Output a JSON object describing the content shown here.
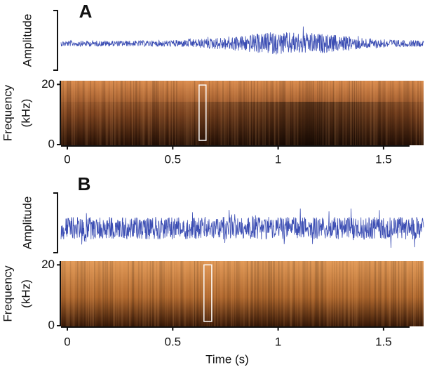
{
  "chart_data": [
    {
      "type": "spectrogram",
      "label": "A",
      "amplitude_label": "Amplitude",
      "frequency_label": [
        "Frequency",
        "(kHz)"
      ],
      "waveform_color": "#3b4db3",
      "xlim": [
        -0.03,
        1.69
      ],
      "xticks": [
        0,
        0.5,
        1,
        1.5
      ],
      "ylim": [
        0,
        21
      ],
      "yticks": [
        0,
        20
      ],
      "highlight": {
        "x": [
          0.625,
          0.658
        ],
        "y": [
          1.4,
          19.8
        ]
      }
    },
    {
      "type": "spectrogram",
      "label": "B",
      "amplitude_label": "Amplitude",
      "frequency_label": [
        "Frequency",
        "(kHz)"
      ],
      "waveform_color": "#3b4db3",
      "xlim": [
        -0.03,
        1.69
      ],
      "xticks": [
        0,
        0.5,
        1,
        1.5
      ],
      "ylim": [
        0,
        21
      ],
      "yticks": [
        0,
        20
      ],
      "highlight": {
        "x": [
          0.648,
          0.685
        ],
        "y": [
          1.4,
          20
        ]
      },
      "xlabel": "Time (s)"
    }
  ]
}
